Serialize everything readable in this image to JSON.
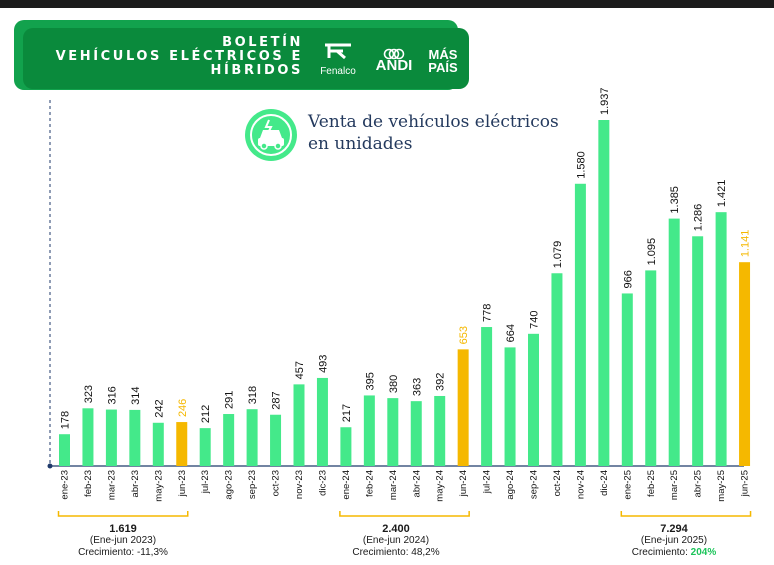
{
  "header": {
    "title_line1": "BOLETÍN",
    "title_line2": "VEHÍCULOS ELÉCTRICOS E",
    "title_line3": "HÍBRIDOS",
    "logo_fenalco": "Fenalco",
    "logo_andi": "ANDI",
    "logo_mas": "MÁS",
    "logo_pais": "PAÍS"
  },
  "chart_data": {
    "type": "bar",
    "title_line1": "Venta de vehículos eléctricos",
    "title_line2": "en unidades",
    "categories": [
      "ene-23",
      "feb-23",
      "mar-23",
      "abr-23",
      "may-23",
      "jun-23",
      "jul-23",
      "ago-23",
      "sep-23",
      "oct-23",
      "nov-23",
      "dic-23",
      "ene-24",
      "feb-24",
      "mar-24",
      "abr-24",
      "may-24",
      "jun-24",
      "jul-24",
      "ago-24",
      "sep-24",
      "oct-24",
      "nov-24",
      "dic-24",
      "ene-25",
      "feb-25",
      "mar-25",
      "abr-25",
      "may-25",
      "jun-25"
    ],
    "values": [
      178,
      323,
      316,
      314,
      242,
      246,
      212,
      291,
      318,
      287,
      457,
      493,
      217,
      395,
      380,
      363,
      392,
      653,
      778,
      664,
      740,
      1079,
      1580,
      1937,
      966,
      1095,
      1385,
      1286,
      1421,
      1141
    ],
    "labels": [
      "178",
      "323",
      "316",
      "314",
      "242",
      "246",
      "212",
      "291",
      "318",
      "287",
      "457",
      "493",
      "217",
      "395",
      "380",
      "363",
      "392",
      "653",
      "778",
      "664",
      "740",
      "1.079",
      "1.580",
      "1.937",
      "966",
      "1.095",
      "1.385",
      "1.286",
      "1.421",
      "1.141"
    ],
    "highlight_months": [
      "jun-23",
      "jun-24",
      "jun-25"
    ],
    "ylim": [
      0,
      1937
    ],
    "grid": false,
    "colors": {
      "bar": "#44e98a",
      "highlight": "#f5b800",
      "highlight_label": "#f5b800",
      "label": "#111111",
      "axis": "#1f3a6b"
    },
    "summaries": [
      {
        "total": "1.619",
        "period": "(Ene-jun 2023)",
        "growth_label": "Crecimiento: ",
        "growth_value": "-11,3%",
        "growth_color": "#1a1a1a"
      },
      {
        "total": "2.400",
        "period": "(Ene-jun 2024)",
        "growth_label": "Crecimiento: ",
        "growth_value": "48,2%",
        "growth_color": "#1a1a1a"
      },
      {
        "total": "7.294",
        "period": "(Ene-jun 2025)",
        "growth_label": "Crecimiento: ",
        "growth_value": "204%",
        "growth_color": "#1cc45a"
      }
    ],
    "bracket_color": "#f5b800"
  }
}
